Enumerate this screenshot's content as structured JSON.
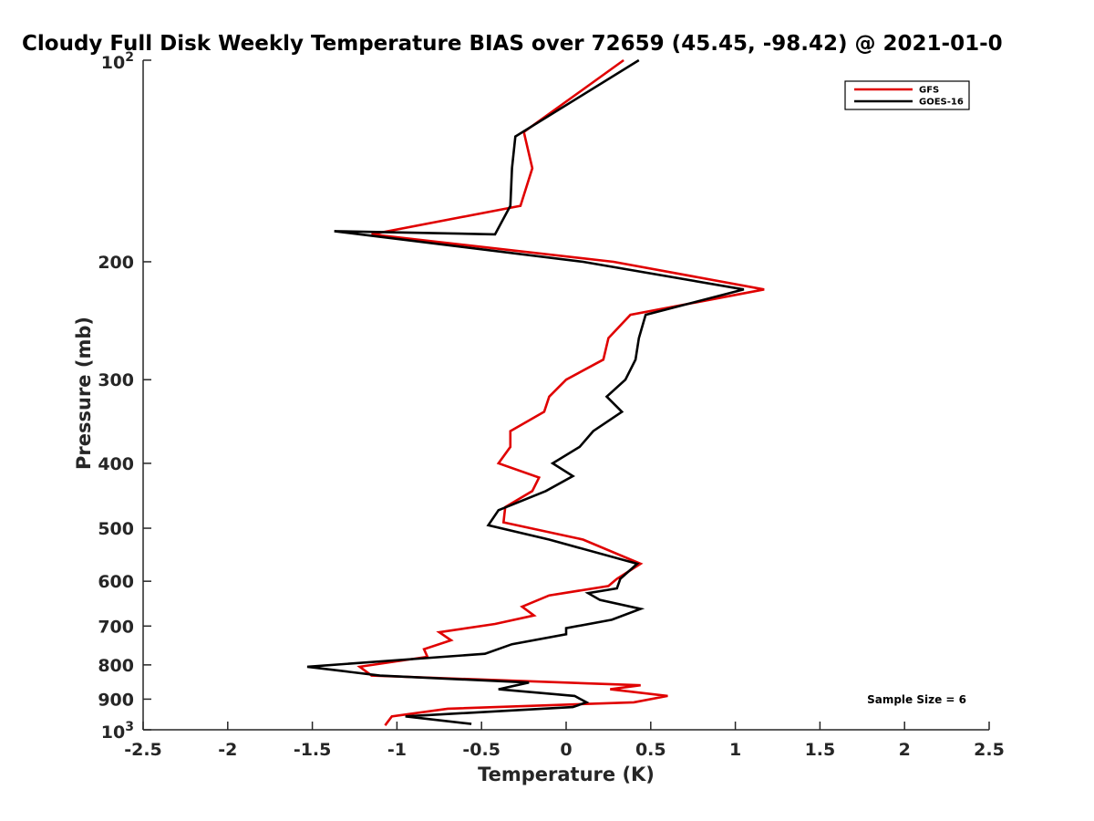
{
  "chart_data": {
    "type": "line",
    "title": "Cloudy Full Disk Weekly Temperature BIAS over 72659 (45.45, -98.42) @ 2021-01-0",
    "xlabel": "Temperature (K)",
    "ylabel": "Pressure (mb)",
    "xlim": [
      -2.5,
      2.5
    ],
    "ylim": [
      100,
      1000
    ],
    "yscale": "log",
    "yreversed": true,
    "grid": false,
    "legend_position": "top-right",
    "x_ticks": [
      "-2.5",
      "-2",
      "-1.5",
      "-1",
      "-0.5",
      "0",
      "0.5",
      "1",
      "1.5",
      "2",
      "2.5"
    ],
    "x_tick_values": [
      -2.5,
      -2,
      -1.5,
      -1,
      -0.5,
      0,
      0.5,
      1,
      1.5,
      2,
      2.5
    ],
    "y_ticks": [
      {
        "value": 100,
        "base": "10",
        "exp": "2"
      },
      {
        "value": 200,
        "label": "200"
      },
      {
        "value": 300,
        "label": "300"
      },
      {
        "value": 400,
        "label": "400"
      },
      {
        "value": 500,
        "label": "500"
      },
      {
        "value": 600,
        "label": "600"
      },
      {
        "value": 700,
        "label": "700"
      },
      {
        "value": 800,
        "label": "800"
      },
      {
        "value": 900,
        "label": "900"
      },
      {
        "value": 1000,
        "base": "10",
        "exp": "3"
      }
    ],
    "series": [
      {
        "name": "GFS",
        "color": "#e00000",
        "x": [
          0.34,
          -0.25,
          -0.2,
          -0.27,
          -1.15,
          0.28,
          1.17,
          0.38,
          0.25,
          0.22,
          0.0,
          -0.1,
          -0.13,
          -0.33,
          -0.33,
          -0.4,
          -0.16,
          -0.2,
          -0.36,
          -0.37,
          0.1,
          0.44,
          0.3,
          0.25,
          -0.1,
          -0.26,
          -0.19,
          -0.42,
          -0.75,
          -0.68,
          -0.84,
          -0.82,
          -1.22,
          -1.15,
          0.44,
          0.26,
          0.6,
          0.4,
          -0.7,
          -1.03,
          -1.07
        ],
        "y": [
          100,
          128,
          145,
          165,
          182,
          200,
          220,
          240,
          260,
          280,
          300,
          318,
          335,
          358,
          378,
          400,
          420,
          440,
          465,
          490,
          520,
          565,
          595,
          610,
          630,
          655,
          675,
          695,
          715,
          735,
          758,
          778,
          805,
          830,
          858,
          870,
          890,
          910,
          930,
          955,
          985
        ]
      },
      {
        "name": "GOES-16",
        "color": "#000000",
        "x": [
          0.43,
          -0.3,
          -0.32,
          -0.33,
          -0.42,
          -1.37,
          0.1,
          1.05,
          0.47,
          0.43,
          0.41,
          0.35,
          0.24,
          0.33,
          0.16,
          0.08,
          -0.08,
          0.04,
          -0.12,
          -0.4,
          -0.46,
          -0.1,
          0.42,
          0.32,
          0.3,
          0.13,
          0.2,
          0.44,
          0.27,
          0.0,
          0.0,
          -0.32,
          -0.48,
          -1.53,
          -1.1,
          -0.22,
          -0.4,
          0.05,
          0.12,
          0.04,
          -0.95,
          -0.56
        ],
        "y": [
          100,
          130,
          145,
          165,
          182,
          180,
          200,
          220,
          240,
          260,
          280,
          300,
          318,
          335,
          358,
          378,
          400,
          418,
          440,
          470,
          495,
          520,
          565,
          595,
          615,
          625,
          640,
          660,
          685,
          705,
          720,
          745,
          770,
          805,
          830,
          850,
          870,
          890,
          910,
          925,
          955,
          980
        ]
      }
    ],
    "annotations": [
      {
        "text": "Sample Size = 6",
        "position": "bottom-right"
      }
    ]
  }
}
